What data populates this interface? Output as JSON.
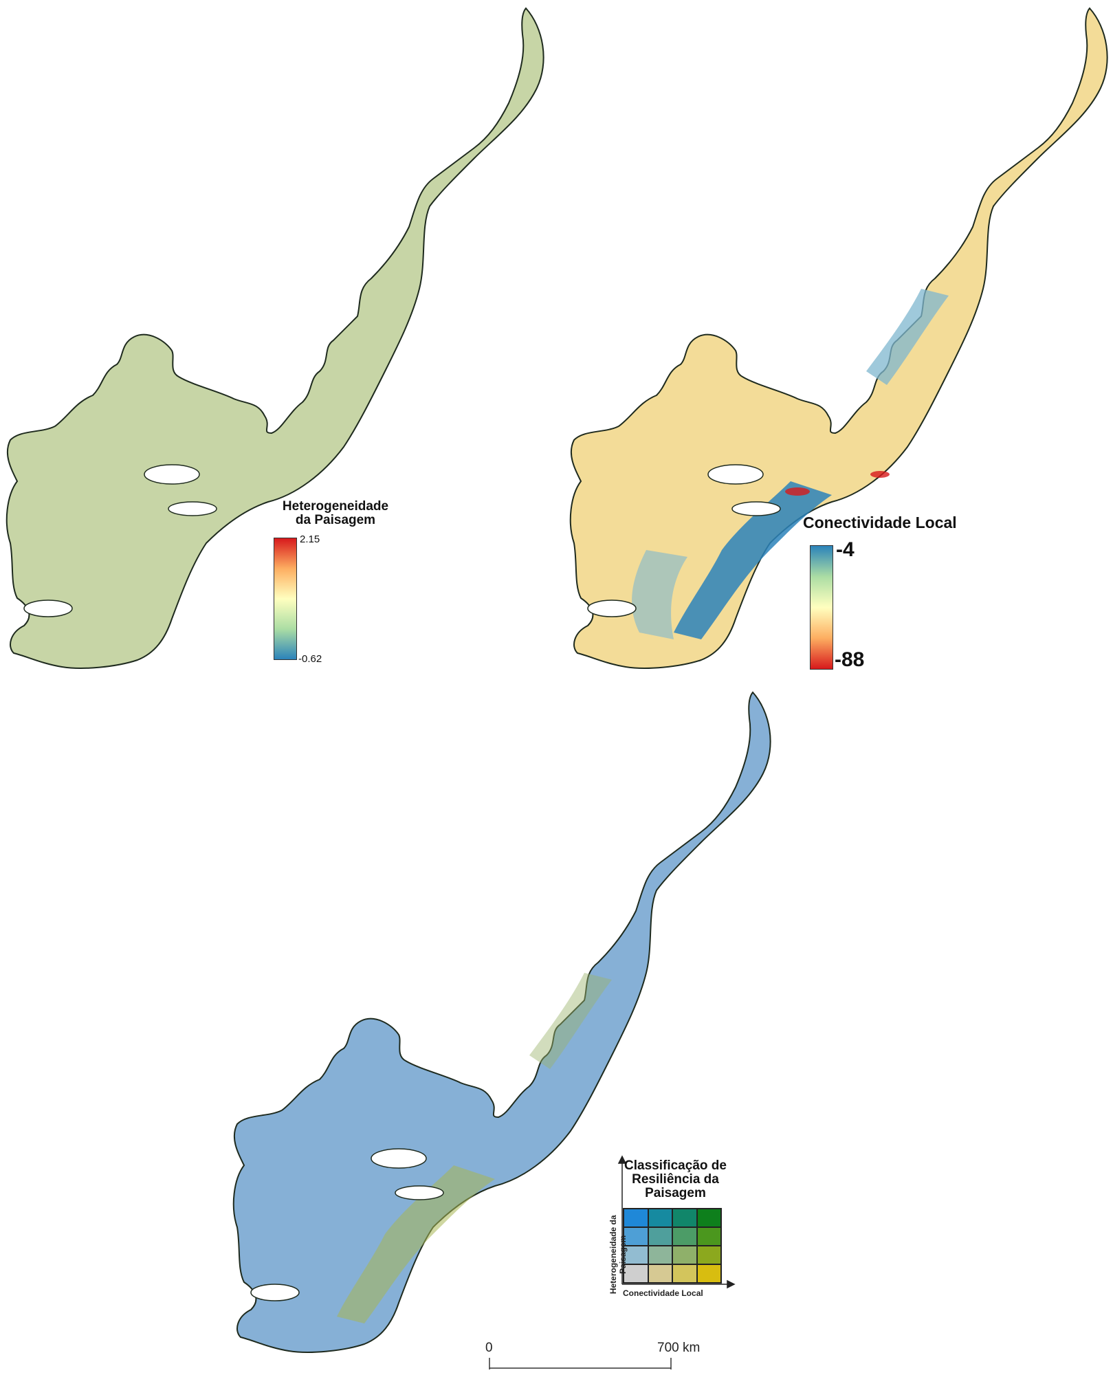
{
  "maps": {
    "heterogeneity": {
      "legend_title_line1": "Heterogeneidade",
      "legend_title_line2": "da Paisagem",
      "max_label": "2.15",
      "min_label": "-0.62",
      "ramp_colors": [
        "#d7191c",
        "#fdae61",
        "#ffffbf",
        "#abdda4",
        "#2b83ba"
      ],
      "fill_color": "#c7d5a6"
    },
    "connectivity": {
      "legend_title": "Conectividade Local",
      "max_label": "-4",
      "min_label": "-88",
      "ramp_colors": [
        "#2b83ba",
        "#abdda4",
        "#ffffbf",
        "#fdae61",
        "#d7191c"
      ],
      "fill_color": "#f3dc98"
    },
    "resilience": {
      "legend_title_line1": "Classificação de",
      "legend_title_line2": "Resiliência da",
      "legend_title_line3": "Paisagem",
      "y_axis_label_line1": "Heterogeneidade da",
      "y_axis_label_line2": "Paisagem",
      "x_axis_label": "Conectividade Local",
      "fill_color": "#86b0d6",
      "grid_colors": [
        [
          "#1f88d8",
          "#168aa0",
          "#11866a",
          "#0e7f1c"
        ],
        [
          "#4e9fd6",
          "#4f9f9c",
          "#4c9c67",
          "#4b971e"
        ],
        [
          "#92bcd1",
          "#8eb59a",
          "#8fb06a",
          "#8ca81e"
        ],
        [
          "#cfcfcf",
          "#d6c993",
          "#d3c55c",
          "#d8bd10"
        ]
      ]
    }
  },
  "scale_bar": {
    "start_label": "0",
    "end_label": "700 km"
  }
}
